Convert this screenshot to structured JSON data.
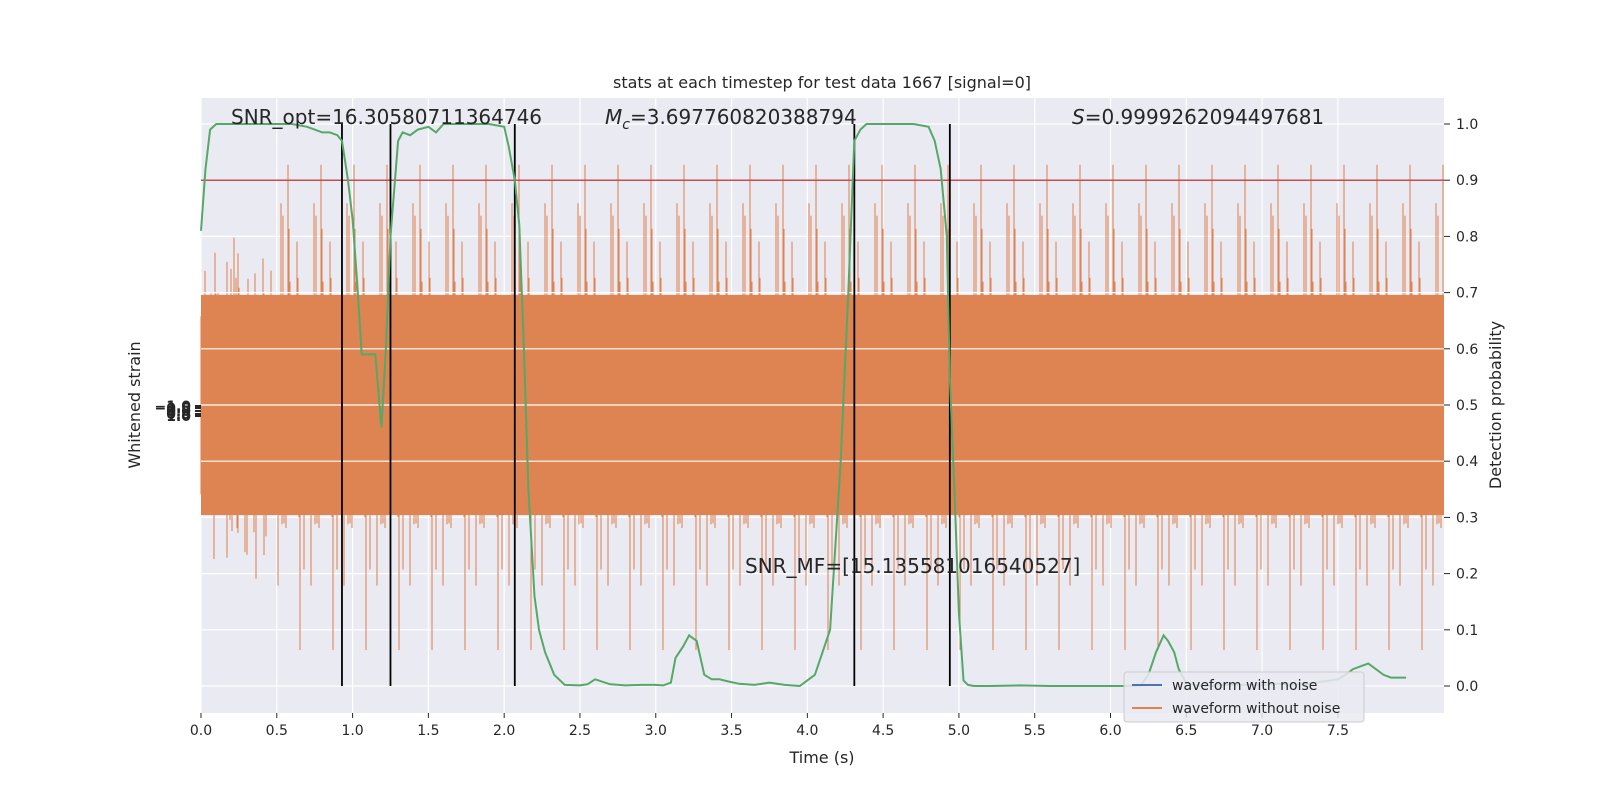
{
  "chart_data": {
    "type": "line",
    "title": "stats at each timestep for test data 1667 [signal=0]",
    "xlabel": "Time (s)",
    "ylabel_left": "Whitened strain",
    "ylabel_right": "Detection probability",
    "xlim": [
      0.0,
      8.0
    ],
    "ylim_right": [
      -0.05,
      1.05
    ],
    "grid": true,
    "x_ticks": [
      "0.0",
      "0.5",
      "1.0",
      "1.5",
      "2.0",
      "2.5",
      "3.0",
      "3.5",
      "4.0",
      "4.5",
      "5.0",
      "5.5",
      "6.0",
      "6.5",
      "7.0",
      "7.5"
    ],
    "x_tick_values": [
      0.0,
      0.5,
      1.0,
      1.5,
      2.0,
      2.5,
      3.0,
      3.5,
      4.0,
      4.5,
      5.0,
      5.5,
      6.0,
      6.5,
      7.0,
      7.5
    ],
    "y_ticks_right": [
      "0.0",
      "0.1",
      "0.2",
      "0.3",
      "0.4",
      "0.5",
      "0.6",
      "0.7",
      "0.8",
      "0.9",
      "1.0"
    ],
    "y_tick_values_right": [
      0.0,
      0.1,
      0.2,
      0.3,
      0.4,
      0.5,
      0.6,
      0.7,
      0.8,
      0.9,
      1.0
    ],
    "left_tick_labels": [
      "−1.0",
      "−0.5",
      "0.0",
      "0.5",
      "1.0"
    ],
    "annotations": {
      "snr_opt": "SNR_opt=16.30580711364746",
      "mc_symbol": "M",
      "mc_sub": "c",
      "mc_value": "=3.697760820388794",
      "s_symbol": "S",
      "s_value": "=0.9999262094497681",
      "snr_mf": "SNR_MF=[15.135581016540527]"
    },
    "threshold": {
      "value": 0.9,
      "color": "#c44e52"
    },
    "vertical_lines_x": [
      0.93,
      1.25,
      2.07,
      4.31,
      4.94
    ],
    "legend": {
      "position": "lower-right",
      "entries": [
        {
          "label": "waveform with noise",
          "color": "#4c72b0"
        },
        {
          "label": "waveform without noise",
          "color": "#dd8452"
        }
      ]
    },
    "strain_color": "#dd8452",
    "probability_color": "#55a868",
    "probability": {
      "x": [
        0.0,
        0.03,
        0.06,
        0.1,
        0.2,
        0.3,
        0.4,
        0.5,
        0.6,
        0.7,
        0.8,
        0.85,
        0.9,
        0.93,
        0.97,
        1.0,
        1.03,
        1.06,
        1.1,
        1.15,
        1.19,
        1.22,
        1.25,
        1.3,
        1.33,
        1.38,
        1.43,
        1.5,
        1.55,
        1.6,
        1.65,
        1.7,
        1.8,
        1.9,
        2.0,
        2.03,
        2.07,
        2.1,
        2.13,
        2.16,
        2.2,
        2.23,
        2.27,
        2.33,
        2.4,
        2.5,
        2.55,
        2.6,
        2.7,
        2.8,
        2.9,
        3.0,
        3.05,
        3.1,
        3.13,
        3.18,
        3.22,
        3.27,
        3.32,
        3.37,
        3.42,
        3.48,
        3.55,
        3.65,
        3.75,
        3.85,
        3.95,
        4.0,
        4.05,
        4.15,
        4.22,
        4.27,
        4.31,
        4.35,
        4.39,
        4.43,
        4.5,
        4.6,
        4.7,
        4.8,
        4.84,
        4.88,
        4.92,
        4.94,
        4.97,
        5.0,
        5.03,
        5.06,
        5.1,
        5.2,
        5.4,
        5.6,
        5.8,
        6.0,
        6.1,
        6.2,
        6.25,
        6.3,
        6.35,
        6.38,
        6.42,
        6.45,
        6.5,
        6.55,
        6.6,
        6.8,
        7.0,
        7.1,
        7.2,
        7.3,
        7.4,
        7.5,
        7.55,
        7.6,
        7.65,
        7.7,
        7.75,
        7.8,
        7.85,
        7.9,
        7.95
      ],
      "y": [
        0.81,
        0.92,
        0.99,
        1.0,
        1.0,
        1.0,
        1.0,
        1.0,
        1.0,
        0.995,
        0.985,
        0.985,
        0.98,
        0.97,
        0.9,
        0.83,
        0.72,
        0.59,
        0.59,
        0.59,
        0.46,
        0.6,
        0.8,
        0.97,
        0.985,
        0.98,
        0.99,
        0.995,
        0.985,
        1.0,
        1.0,
        1.0,
        1.0,
        1.0,
        0.995,
        0.96,
        0.9,
        0.82,
        0.6,
        0.35,
        0.16,
        0.1,
        0.06,
        0.02,
        0.002,
        0.001,
        0.003,
        0.012,
        0.003,
        0.001,
        0.002,
        0.002,
        0.001,
        0.006,
        0.05,
        0.07,
        0.09,
        0.08,
        0.02,
        0.012,
        0.012,
        0.008,
        0.004,
        0.002,
        0.006,
        0.002,
        0.0,
        0.01,
        0.02,
        0.1,
        0.4,
        0.7,
        0.97,
        0.99,
        1.0,
        1.0,
        1.0,
        1.0,
        1.0,
        0.995,
        0.97,
        0.92,
        0.8,
        0.55,
        0.35,
        0.13,
        0.01,
        0.002,
        0.0,
        0.0,
        0.001,
        0.0,
        0.0,
        0.0,
        0.0,
        0.001,
        0.02,
        0.06,
        0.09,
        0.08,
        0.06,
        0.03,
        0.005,
        0.002,
        0.0,
        0.002,
        0.002,
        0.004,
        0.002,
        0.004,
        0.008,
        0.012,
        0.02,
        0.03,
        0.035,
        0.04,
        0.03,
        0.02,
        0.015,
        0.015,
        0.015
      ]
    }
  }
}
